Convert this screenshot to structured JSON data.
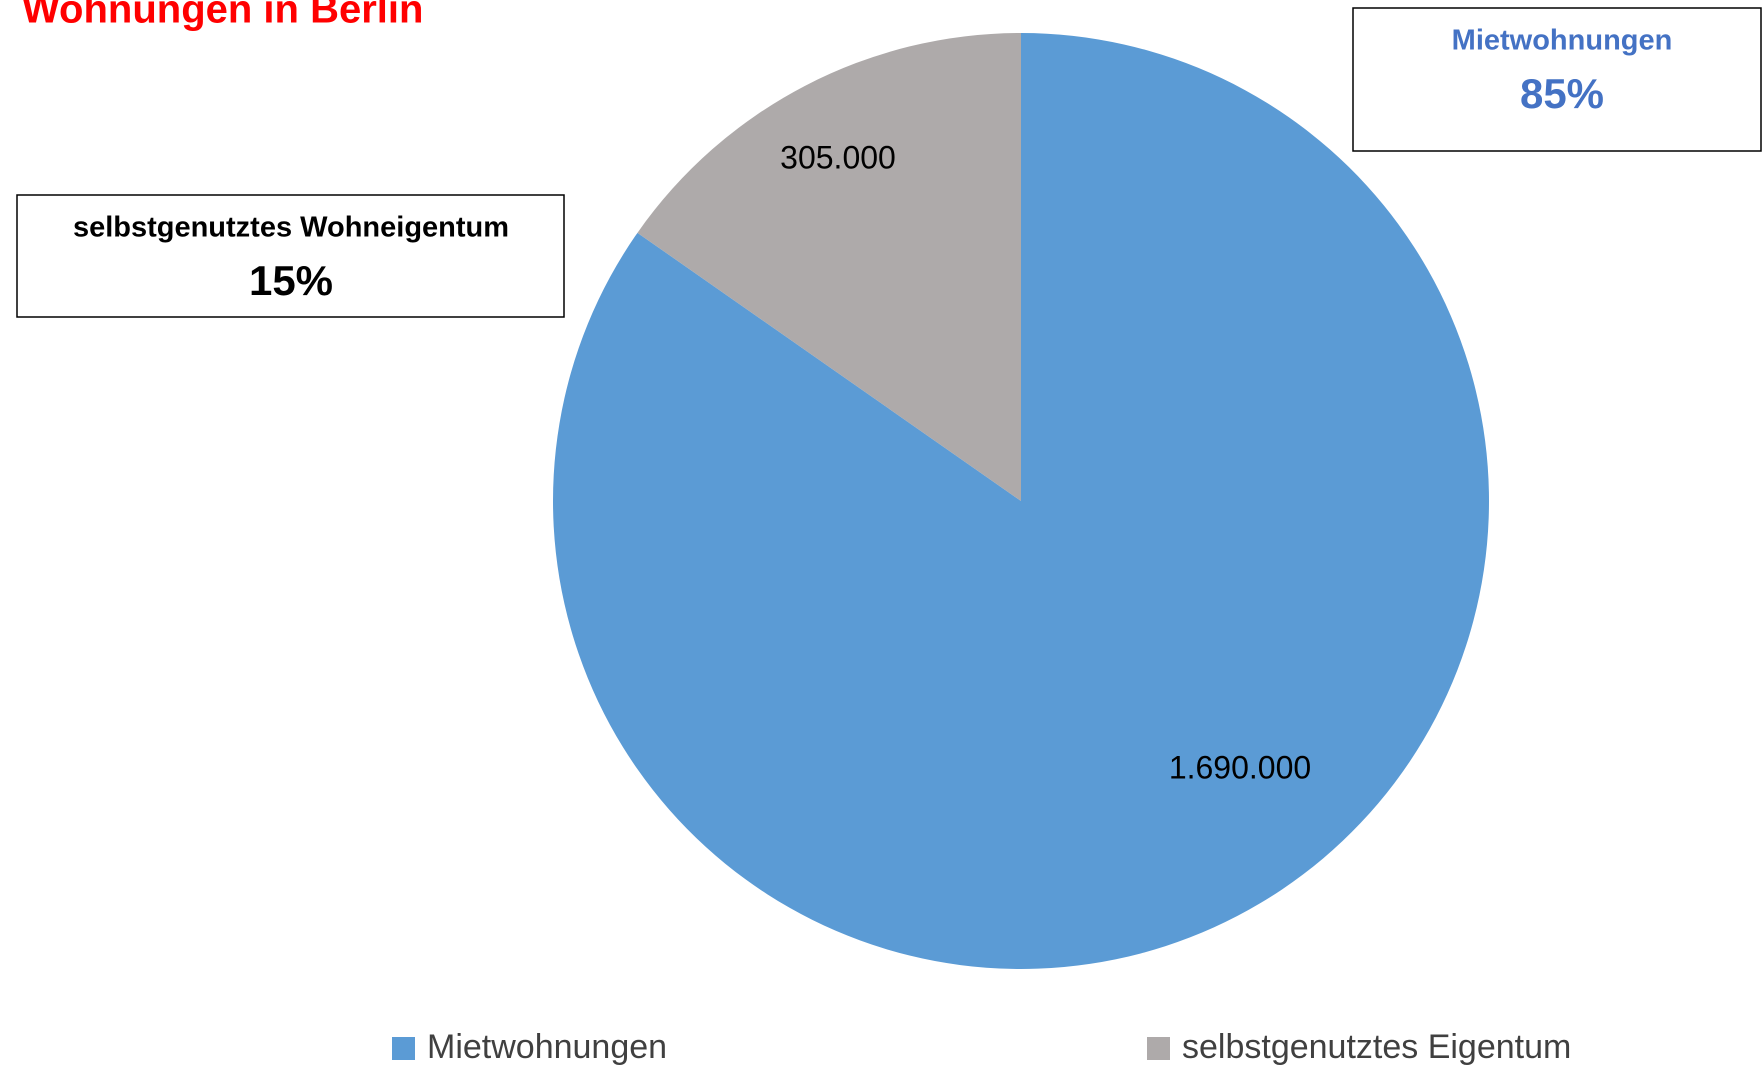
{
  "chart_data": {
    "type": "pie",
    "title": "Wohnungen in Berlin",
    "categories": [
      "Mietwohnungen",
      "selbstgenutztes Eigentum"
    ],
    "values": [
      1690000,
      305000
    ],
    "value_labels": [
      "1.690.000",
      "305.000"
    ],
    "colors": [
      "#5b9bd5",
      "#aeaaaa"
    ],
    "annotations": [
      {
        "text": "Mietwohnungen",
        "value": 85,
        "label": "85%",
        "color": "#4472c4"
      },
      {
        "text": "selbstgenutztes Wohneigentum",
        "value": 15,
        "label": "15%",
        "color": "#000000"
      }
    ],
    "legend": "bottom"
  }
}
